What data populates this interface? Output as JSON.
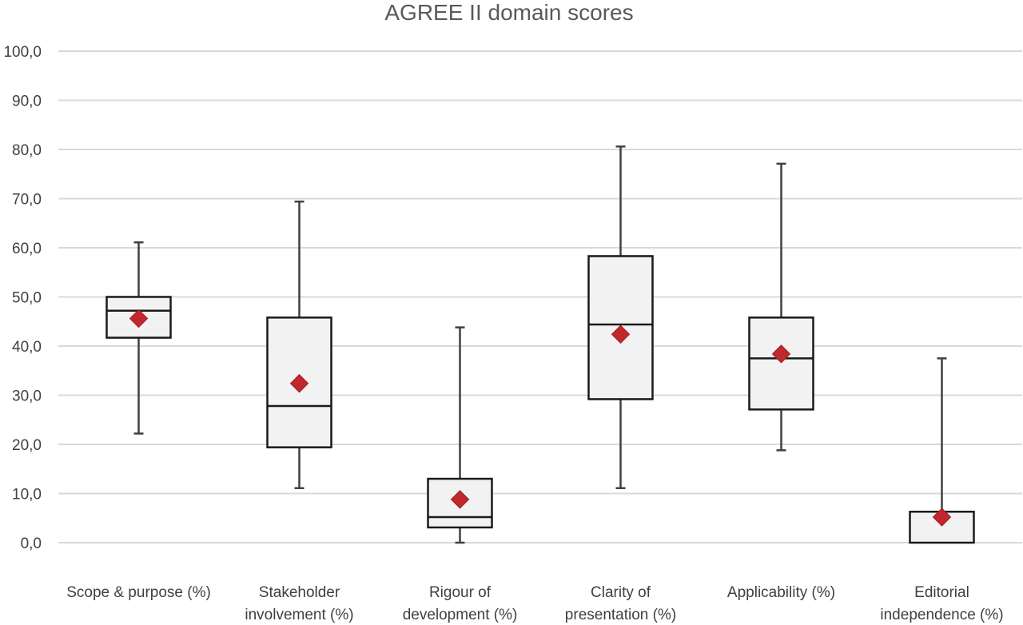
{
  "chart_data": {
    "type": "box",
    "title": "AGREE II domain scores",
    "xlabel": "",
    "ylabel": "",
    "ylim": [
      0,
      100
    ],
    "y_ticks": [
      "0,0",
      "10,0",
      "20,0",
      "30,0",
      "40,0",
      "50,0",
      "60,0",
      "70,0",
      "80,0",
      "90,0",
      "100,0"
    ],
    "grid": true,
    "colors": {
      "box_fill": "#f2f2f2",
      "box_stroke": "#1a1a1a",
      "whisker": "#404040",
      "mean_marker": "#c0282d",
      "grid": "#d9d9d9"
    },
    "categories": [
      {
        "label_lines": [
          "Scope & purpose (%)"
        ]
      },
      {
        "label_lines": [
          "Stakeholder",
          "involvement (%)"
        ]
      },
      {
        "label_lines": [
          "Rigour of",
          "development (%)"
        ]
      },
      {
        "label_lines": [
          "Clarity of",
          "presentation (%)"
        ]
      },
      {
        "label_lines": [
          "Applicability (%)"
        ]
      },
      {
        "label_lines": [
          "Editorial",
          "independence (%)"
        ]
      }
    ],
    "boxes": [
      {
        "min": 22.2,
        "q1": 41.7,
        "median": 47.2,
        "q3": 50.0,
        "max": 61.1,
        "mean": 45.6
      },
      {
        "min": 11.1,
        "q1": 19.4,
        "median": 27.8,
        "q3": 45.8,
        "max": 69.4,
        "mean": 32.4
      },
      {
        "min": 0.0,
        "q1": 3.1,
        "median": 5.2,
        "q3": 13.0,
        "max": 43.8,
        "mean": 8.8
      },
      {
        "min": 11.1,
        "q1": 29.2,
        "median": 44.4,
        "q3": 58.3,
        "max": 80.6,
        "mean": 42.4
      },
      {
        "min": 18.8,
        "q1": 27.1,
        "median": 37.5,
        "q3": 45.8,
        "max": 77.1,
        "mean": 38.4
      },
      {
        "min": 0.0,
        "q1": 0.0,
        "median": 0.0,
        "q3": 6.3,
        "max": 37.5,
        "mean": 5.2
      }
    ]
  }
}
